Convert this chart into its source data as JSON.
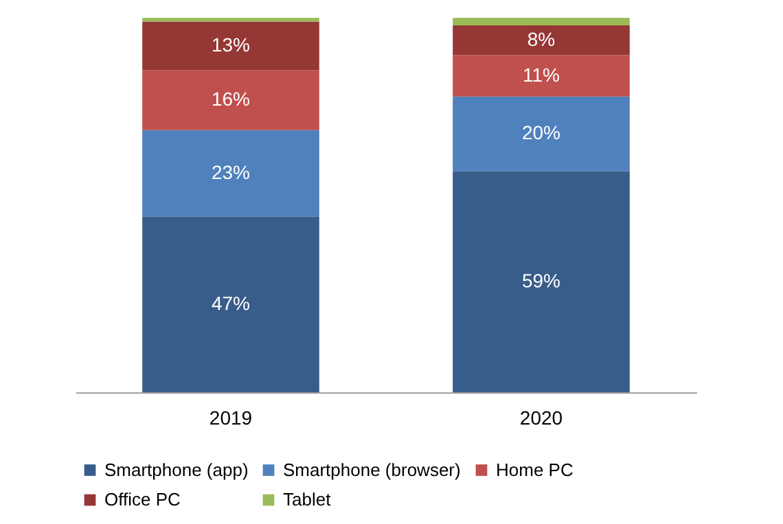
{
  "chart_data": {
    "type": "bar",
    "stacked": true,
    "categories": [
      "2019",
      "2020"
    ],
    "ylim": [
      0,
      100
    ],
    "tick_labels": "x",
    "grid": false,
    "legend": "bottom",
    "series": [
      {
        "name": "Smartphone (app)",
        "color": "#385d8a",
        "values": [
          47,
          59
        ],
        "value_labels": [
          "47%",
          "59%"
        ]
      },
      {
        "name": "Smartphone (browser)",
        "color": "#4f81bd",
        "values": [
          23,
          20
        ],
        "value_labels": [
          "23%",
          "20%"
        ]
      },
      {
        "name": "Home PC",
        "color": "#c0504d",
        "values": [
          16,
          11
        ],
        "value_labels": [
          "16%",
          "11%"
        ]
      },
      {
        "name": "Office PC",
        "color": "#953735",
        "values": [
          13,
          8
        ],
        "value_labels": [
          "13%",
          "8%"
        ]
      },
      {
        "name": "Tablet",
        "color": "#9bbb59",
        "values": [
          1,
          2
        ],
        "value_labels": [
          null,
          null
        ]
      }
    ]
  }
}
